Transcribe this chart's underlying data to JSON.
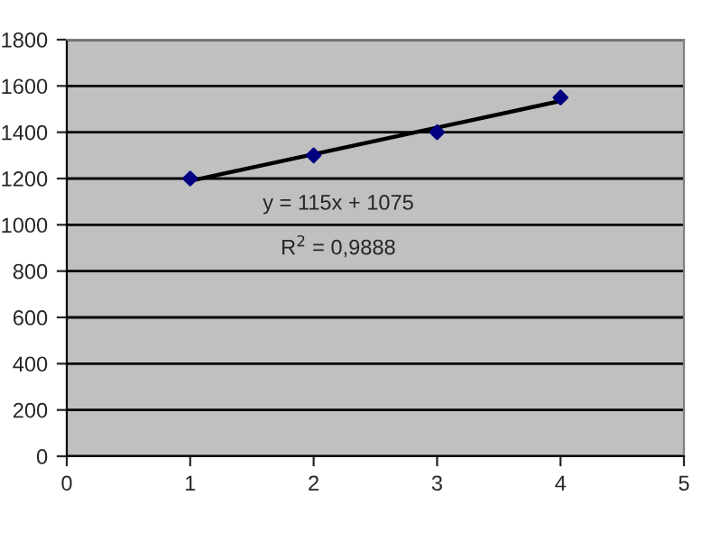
{
  "chart_data": {
    "type": "scatter",
    "xlim": [
      0,
      5
    ],
    "xticks": [
      0,
      1,
      2,
      3,
      4,
      5
    ],
    "ylim": [
      0,
      1800
    ],
    "yticks": [
      0,
      200,
      400,
      600,
      800,
      1000,
      1200,
      1400,
      1600,
      1800
    ],
    "grid": "y",
    "series": [
      {
        "marker": "diamond",
        "color": "#000080",
        "x": [
          1,
          2,
          3,
          4
        ],
        "values": [
          1200,
          1300,
          1400,
          1550
        ]
      },
      {
        "type": "line",
        "color": "#000000",
        "x": [
          1,
          4
        ],
        "values": [
          1190,
          1535
        ],
        "line_style": "solid",
        "marker": "none"
      }
    ],
    "annotations": [
      {
        "text": "y = 115x + 1075"
      },
      {
        "text": "R$^{2}$ = 0,9888"
      }
    ]
  }
}
